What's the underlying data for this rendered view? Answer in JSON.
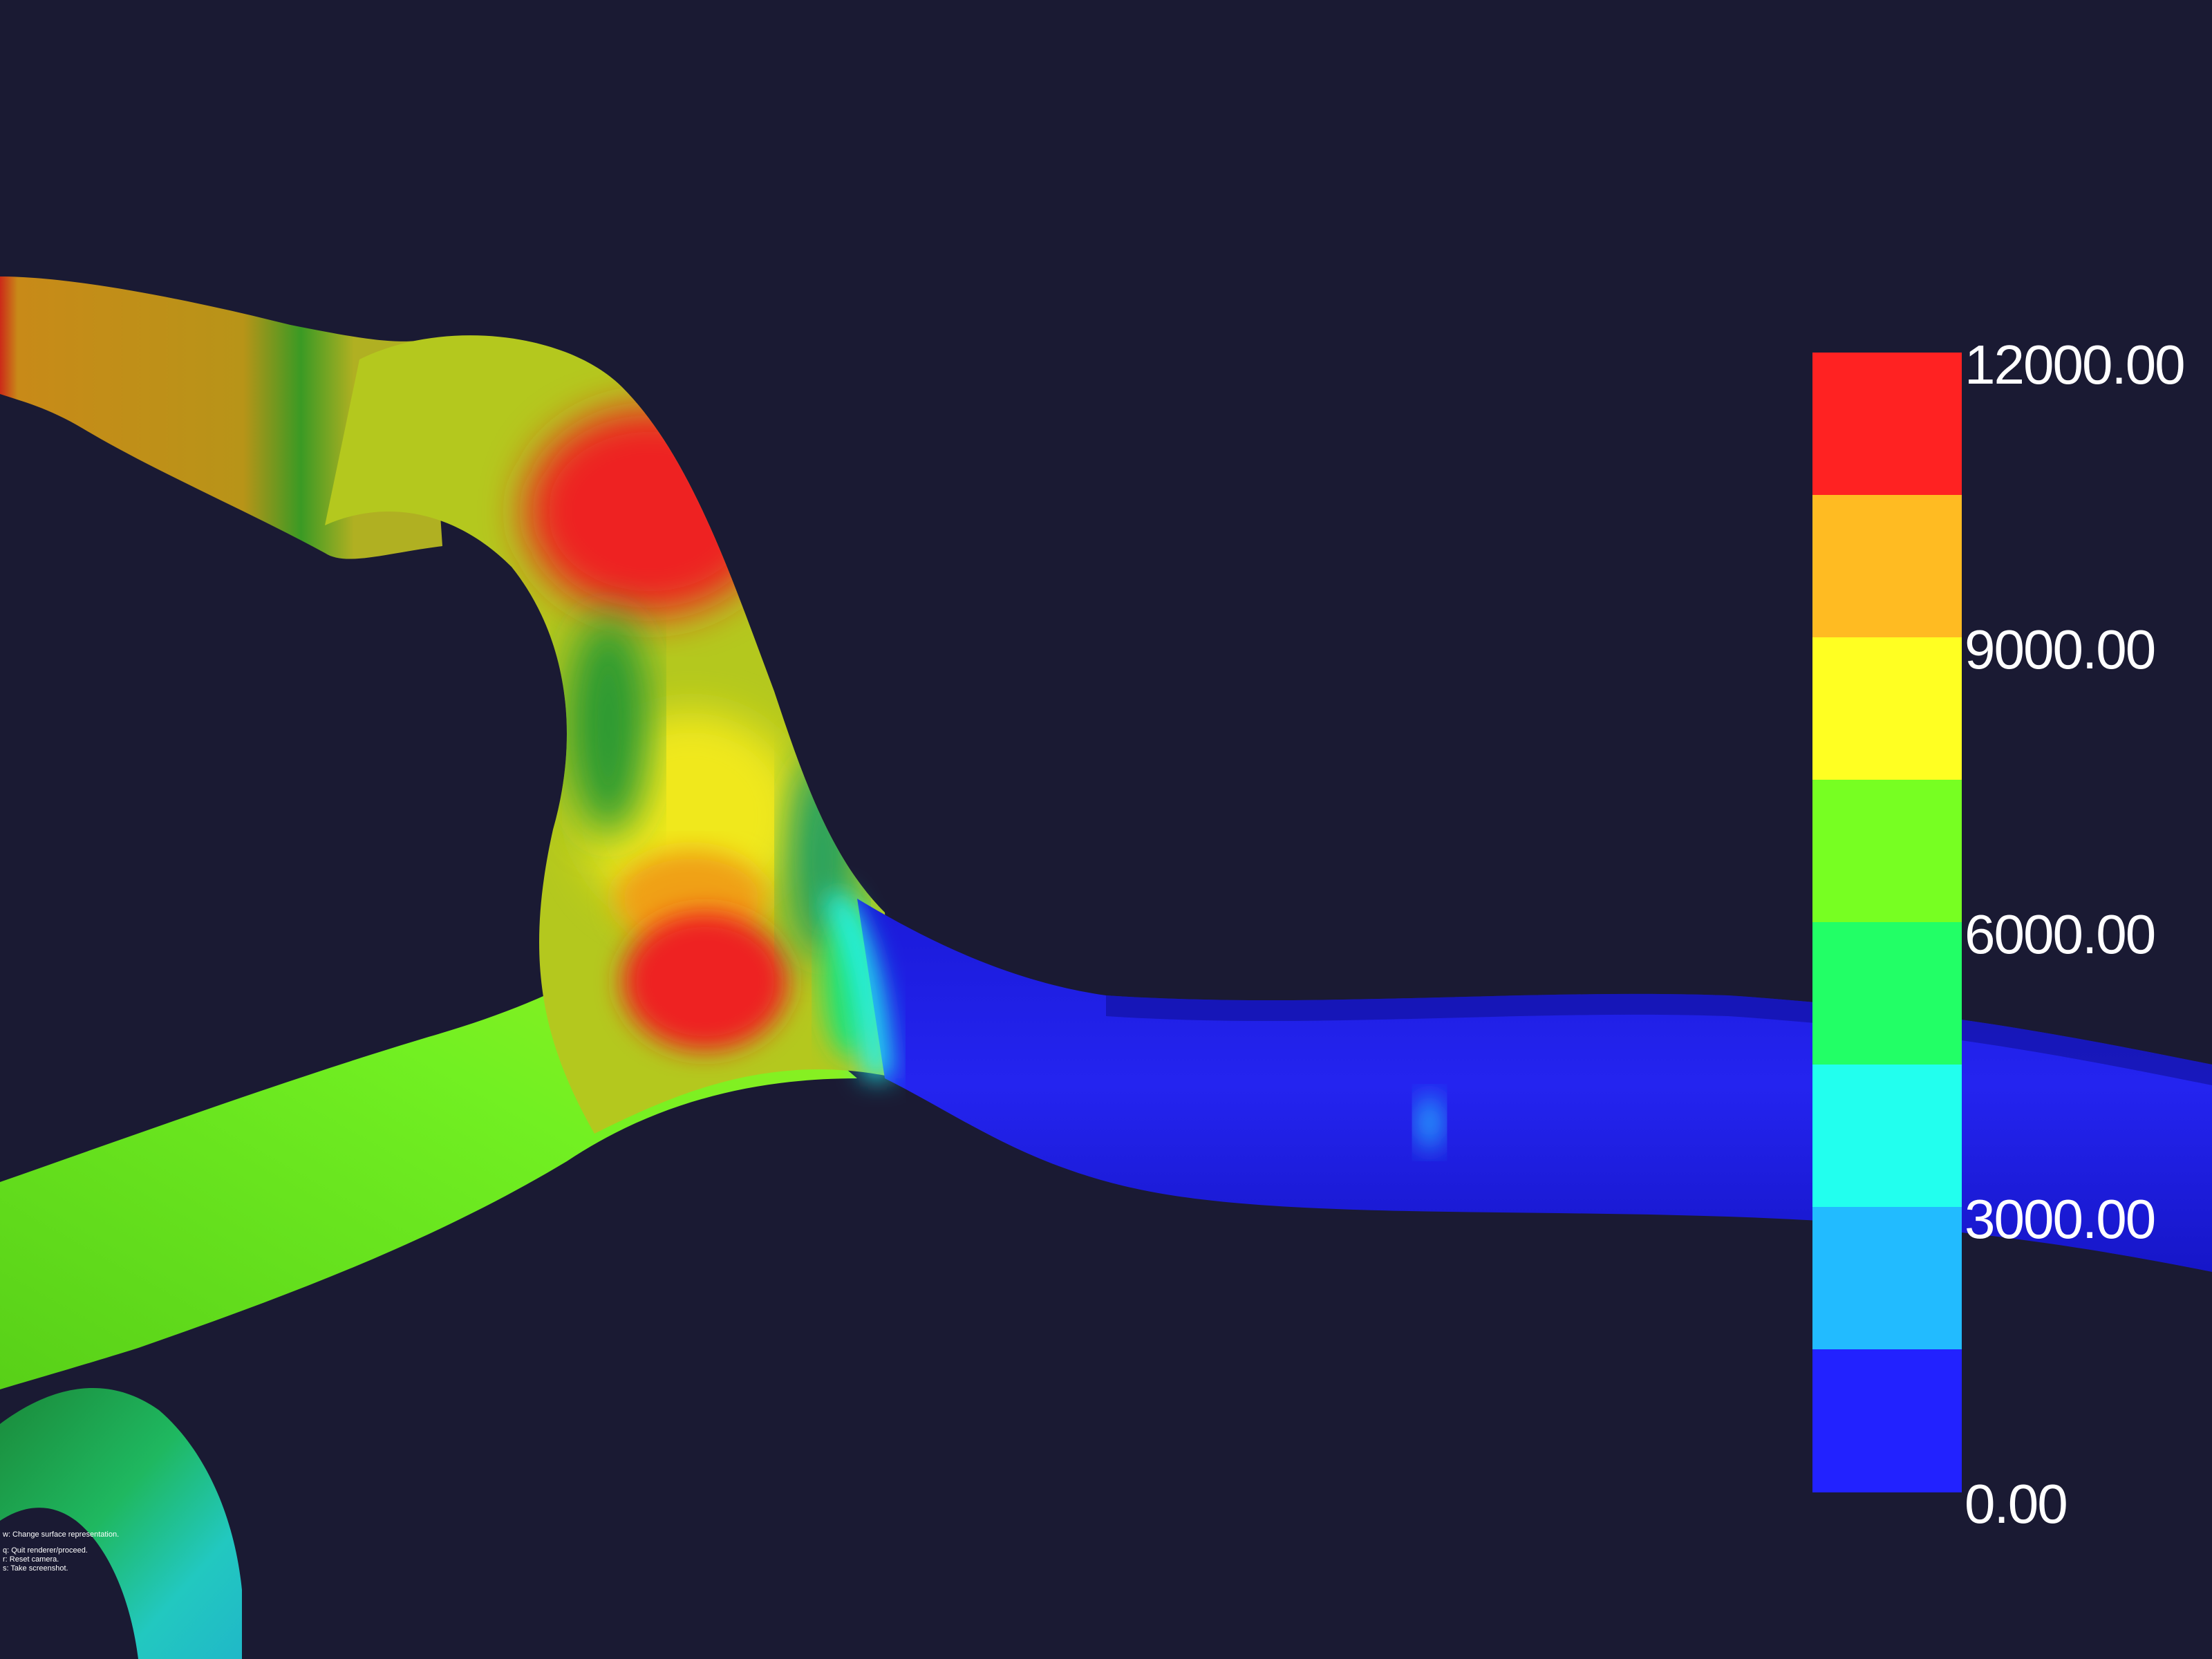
{
  "scalar_bar": {
    "labels": [
      "12000.00",
      "9000.00",
      "6000.00",
      "3000.00",
      "0.00"
    ],
    "colors": [
      "#ff2222",
      "#ffbb22",
      "#ffff22",
      "#77ff22",
      "#22ff66",
      "#22ffee",
      "#22bbff",
      "#2222ff"
    ]
  },
  "help": {
    "line1": "w: Change surface representation.",
    "line2": "q: Quit renderer/proceed.",
    "line3": "r: Reset camera.",
    "line4": "s: Take screenshot."
  }
}
